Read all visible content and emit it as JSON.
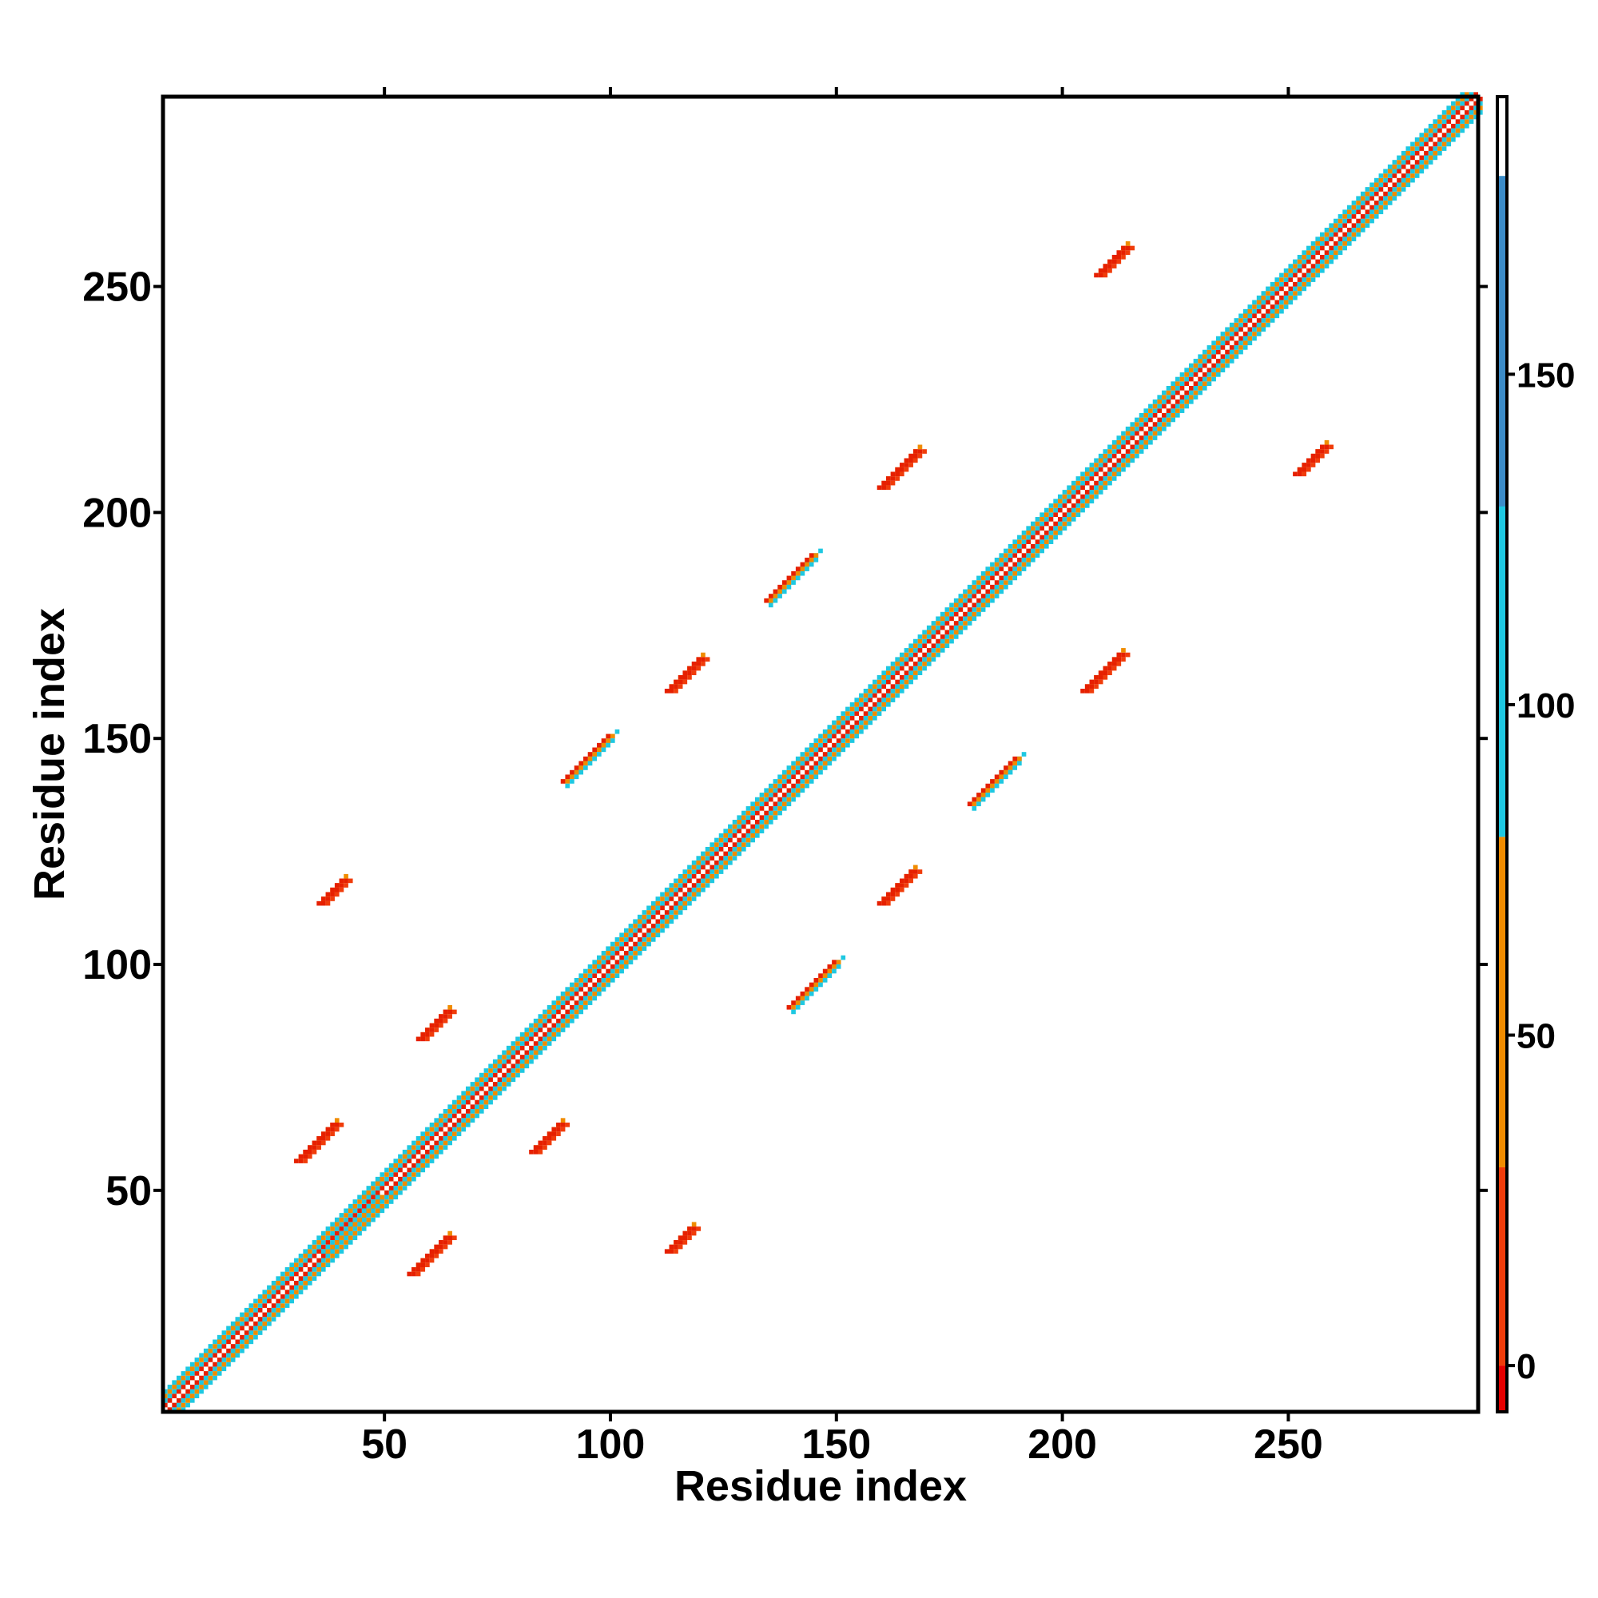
{
  "chart_data": {
    "type": "heatmap",
    "title": "",
    "xlabel": "Residue index",
    "ylabel": "Residue index",
    "xlim": [
      1,
      292
    ],
    "ylim": [
      1,
      292
    ],
    "x_ticks": [
      "50",
      "100",
      "150",
      "200",
      "250"
    ],
    "x_tick_values": [
      50,
      100,
      150,
      200,
      250
    ],
    "y_ticks": [
      "50",
      "100",
      "150",
      "200",
      "250"
    ],
    "y_tick_values": [
      50,
      100,
      150,
      200,
      250
    ],
    "colorbar": {
      "range": [
        -7,
        192
      ],
      "ticks": [
        "0",
        "50",
        "100",
        "150"
      ],
      "tick_values": [
        0,
        50,
        100,
        150
      ],
      "segments": [
        {
          "from": -7,
          "to": 0,
          "color": "#e60000"
        },
        {
          "from": 0,
          "to": 30,
          "color": "#f03c0a"
        },
        {
          "from": 30,
          "to": 80,
          "color": "#f08c00"
        },
        {
          "from": 80,
          "to": 180,
          "color": "#1ec8e1"
        },
        {
          "from": 180,
          "to": 192,
          "color": "#ffffff"
        }
      ],
      "upper_blue_segment": {
        "from": 130,
        "to": 180,
        "color": "#3c8cc8"
      }
    },
    "grid": false,
    "diagonal": {
      "from": 1,
      "to": 292
    },
    "contact_blocks": [
      {
        "x0": 36,
        "y0": 36,
        "x1": 48,
        "y1": 48,
        "kind": "helix-near"
      },
      {
        "x0": 56,
        "y0": 31,
        "x1": 64,
        "y1": 39,
        "kind": "strand-red"
      },
      {
        "x0": 31,
        "y0": 56,
        "x1": 39,
        "y1": 64,
        "kind": "strand-red"
      },
      {
        "x0": 83,
        "y0": 58,
        "x1": 89,
        "y1": 64,
        "kind": "strand-red"
      },
      {
        "x0": 58,
        "y0": 83,
        "x1": 64,
        "y1": 89,
        "kind": "strand-red"
      },
      {
        "x0": 113,
        "y0": 36,
        "x1": 118,
        "y1": 41,
        "kind": "strand-red"
      },
      {
        "x0": 36,
        "y0": 113,
        "x1": 41,
        "y1": 118,
        "kind": "strand-red"
      },
      {
        "x0": 113,
        "y0": 160,
        "x1": 120,
        "y1": 167,
        "kind": "strand-red"
      },
      {
        "x0": 160,
        "y0": 113,
        "x1": 167,
        "y1": 120,
        "kind": "strand-red"
      },
      {
        "x0": 160,
        "y0": 205,
        "x1": 168,
        "y1": 213,
        "kind": "strand-red"
      },
      {
        "x0": 205,
        "y0": 160,
        "x1": 213,
        "y1": 168,
        "kind": "strand-red"
      },
      {
        "x0": 208,
        "y0": 252,
        "x1": 214,
        "y1": 258,
        "kind": "strand-red"
      },
      {
        "x0": 252,
        "y0": 208,
        "x1": 258,
        "y1": 214,
        "kind": "strand-red"
      },
      {
        "x0": 90,
        "y0": 140,
        "x1": 100,
        "y1": 150,
        "kind": "mixed"
      },
      {
        "x0": 140,
        "y0": 90,
        "x1": 150,
        "y1": 100,
        "kind": "mixed"
      },
      {
        "x0": 135,
        "y0": 180,
        "x1": 145,
        "y1": 190,
        "kind": "mixed"
      },
      {
        "x0": 180,
        "y0": 135,
        "x1": 190,
        "y1": 145,
        "kind": "mixed"
      }
    ]
  }
}
